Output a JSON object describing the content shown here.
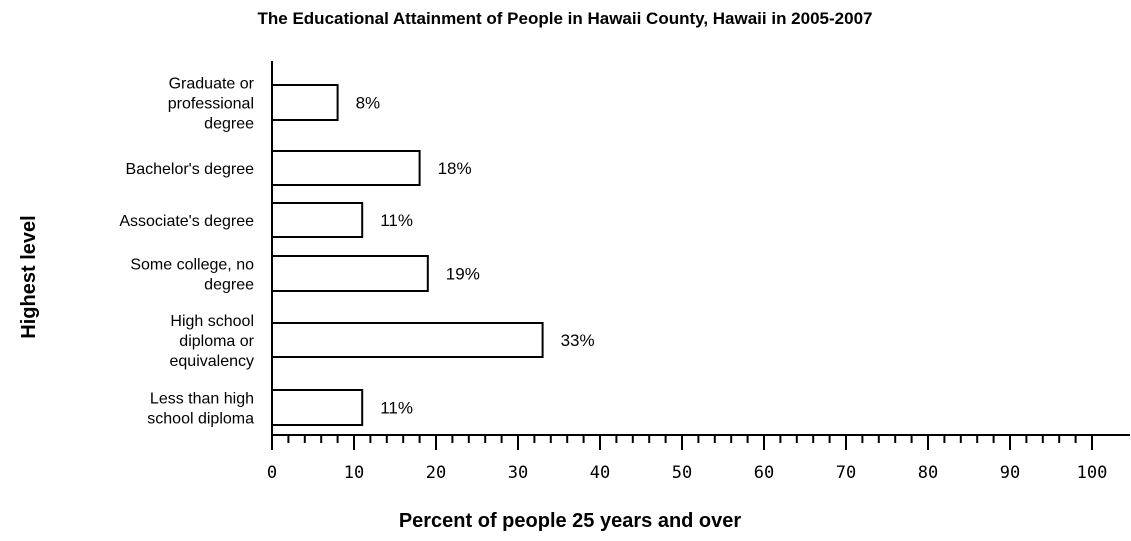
{
  "chart_data": {
    "type": "bar",
    "orientation": "horizontal",
    "title": "The Educational Attainment of People in Hawaii County, Hawaii in 2005-2007",
    "xlabel": "Percent of people 25 years and over",
    "ylabel": "Highest level",
    "xlim": [
      0,
      100
    ],
    "grid": false,
    "categories": [
      {
        "lines": [
          "Graduate or",
          "professional",
          "degree"
        ]
      },
      {
        "lines": [
          "Bachelor's degree"
        ]
      },
      {
        "lines": [
          "Associate's degree"
        ]
      },
      {
        "lines": [
          "Some college, no",
          "degree"
        ]
      },
      {
        "lines": [
          "High school",
          "diploma or",
          "equivalency"
        ]
      },
      {
        "lines": [
          "Less than high",
          "school diploma"
        ]
      }
    ],
    "values": [
      8,
      18,
      11,
      19,
      33,
      11
    ],
    "data_labels": [
      "8%",
      "18%",
      "11%",
      "19%",
      "33%",
      "11%"
    ],
    "tick_labels": [
      "0",
      "10",
      "20",
      "30",
      "40",
      "50",
      "60",
      "70",
      "80",
      "90",
      "100"
    ]
  }
}
